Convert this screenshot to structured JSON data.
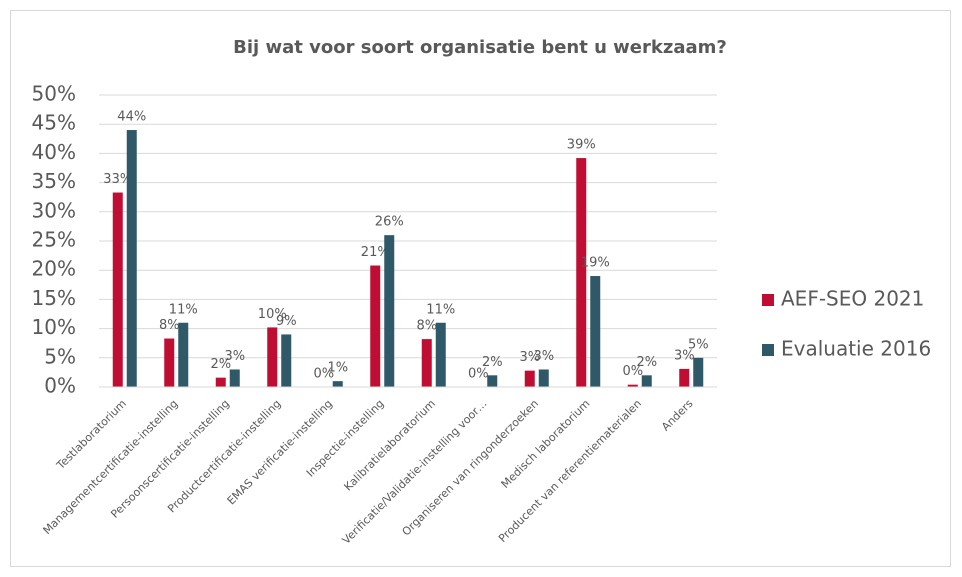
{
  "chart_data": {
    "type": "bar",
    "title": "Bij wat voor soort organisatie bent u werkzaam?",
    "categories": [
      "Testlaboratorium",
      "Managementcertificatie-instelling",
      "Persoonscertificatie-instelling",
      "Productcertificatie-instelling",
      "EMAS verificatie-instelling",
      "Inspectie-instelling",
      "Kalibratielaboratorium",
      "Verificatie/Validatie-instelling voor…",
      "Organiseren van ringonderzoeken",
      "Medisch laboratorium",
      "Producent van referentiematerialen",
      "Anders"
    ],
    "series": [
      {
        "name": "AEF-SEO 2021",
        "color": "#c00d33",
        "values": [
          33.3,
          8.3,
          1.6,
          10.2,
          0,
          20.8,
          8.2,
          0,
          2.8,
          39.2,
          0.4,
          3.1
        ],
        "value_labels": [
          "33%",
          "8%",
          "2%",
          "10%",
          "0%",
          "21%",
          "8%",
          "0%",
          "3%",
          "39%",
          "0%",
          "3%"
        ]
      },
      {
        "name": "Evaluatie 2016",
        "color": "#2f5868",
        "values": [
          44,
          11,
          3,
          9,
          1,
          26,
          11,
          2,
          3,
          19,
          2,
          5
        ],
        "value_labels": [
          "44%",
          "11%",
          "3%",
          "9%",
          "1%",
          "26%",
          "11%",
          "2%",
          "3%",
          "19%",
          "2%",
          "5%"
        ]
      }
    ],
    "ylim": [
      0,
      50
    ],
    "yticks": [
      {
        "value": 0,
        "label": "0%"
      },
      {
        "value": 5,
        "label": "5%"
      },
      {
        "value": 10,
        "label": "10%"
      },
      {
        "value": 15,
        "label": "15%"
      },
      {
        "value": 20,
        "label": "20%"
      },
      {
        "value": 25,
        "label": "25%"
      },
      {
        "value": 30,
        "label": "30%"
      },
      {
        "value": 35,
        "label": "35%"
      },
      {
        "value": 40,
        "label": "40%"
      },
      {
        "value": 45,
        "label": "45%"
      },
      {
        "value": 50,
        "label": "50%"
      }
    ],
    "grid": true,
    "legend": "right"
  }
}
